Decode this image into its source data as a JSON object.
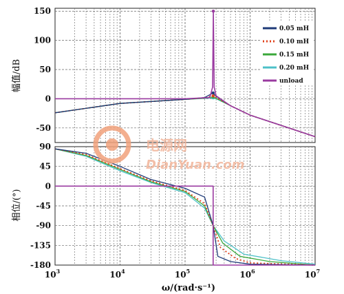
{
  "chart_data": [
    {
      "type": "line",
      "panel": "magnitude",
      "ylabel": "幅值/dB",
      "x_scale": "log",
      "xlim": [
        1000,
        10000000
      ],
      "ylim": [
        -75,
        155
      ],
      "y_ticks": [
        "150",
        "100",
        "50",
        "0",
        "-50"
      ],
      "x_ticks": [
        "10^3",
        "10^4",
        "10^5",
        "10^6",
        "10^7"
      ],
      "grid": true,
      "legend": {
        "position": "top-right",
        "entries": [
          "0.05 mH",
          "0.10 mH",
          "0.15 mH",
          "0.20 mH",
          "unload"
        ]
      },
      "series": [
        {
          "name": "0.05 mH",
          "x": [
            1000,
            10000,
            100000,
            200000,
            270000,
            300000,
            500000,
            1000000,
            10000000
          ],
          "y": [
            -24,
            -8,
            -1,
            2,
            10,
            4,
            -12,
            -28,
            -65
          ]
        },
        {
          "name": "0.10 mH",
          "x": [
            1000,
            10000,
            100000,
            200000,
            270000,
            300000,
            500000,
            1000000,
            10000000
          ],
          "y": [
            -24,
            -8,
            -1,
            1.5,
            5,
            2,
            -12,
            -28,
            -65
          ]
        },
        {
          "name": "0.15 mH",
          "x": [
            1000,
            10000,
            100000,
            200000,
            270000,
            300000,
            500000,
            1000000,
            10000000
          ],
          "y": [
            -24,
            -8,
            -1,
            1,
            3,
            1,
            -12,
            -28,
            -65
          ]
        },
        {
          "name": "0.20 mH",
          "x": [
            1000,
            10000,
            100000,
            200000,
            270000,
            300000,
            500000,
            1000000,
            10000000
          ],
          "y": [
            -24,
            -8,
            -1,
            0.5,
            1.5,
            0,
            -12,
            -28,
            -65
          ]
        },
        {
          "name": "unload",
          "x": [
            1000,
            100000,
            240000,
            265000,
            272000,
            280000,
            300000,
            500000,
            1000000,
            10000000
          ],
          "y": [
            0,
            0,
            2,
            20,
            150,
            20,
            5,
            -12,
            -28,
            -65
          ]
        }
      ]
    },
    {
      "type": "line",
      "panel": "phase",
      "ylabel": "相位/(°)",
      "xlabel": "ω/(rad·s⁻¹)",
      "x_scale": "log",
      "xlim": [
        1000,
        10000000
      ],
      "ylim": [
        -180,
        90
      ],
      "y_ticks": [
        "90",
        "45",
        "0",
        "-45",
        "-90",
        "-135",
        "-180"
      ],
      "x_ticks": [
        "10^3",
        "10^4",
        "10^5",
        "10^6",
        "10^7"
      ],
      "grid": true,
      "series": [
        {
          "name": "0.05 mH",
          "x": [
            1000,
            3000,
            10000,
            30000,
            100000,
            200000,
            270000,
            320000,
            500000,
            1000000,
            10000000
          ],
          "y": [
            85,
            75,
            45,
            15,
            -5,
            -25,
            -90,
            -160,
            -172,
            -178,
            -180
          ]
        },
        {
          "name": "0.10 mH",
          "x": [
            1000,
            3000,
            10000,
            30000,
            100000,
            200000,
            270000,
            350000,
            600000,
            1000000,
            10000000
          ],
          "y": [
            85,
            72,
            40,
            12,
            -10,
            -40,
            -90,
            -140,
            -165,
            -175,
            -180
          ]
        },
        {
          "name": "0.15 mH",
          "x": [
            1000,
            3000,
            10000,
            30000,
            100000,
            200000,
            270000,
            380000,
            700000,
            2000000,
            10000000
          ],
          "y": [
            85,
            70,
            38,
            10,
            -12,
            -45,
            -90,
            -130,
            -160,
            -172,
            -180
          ]
        },
        {
          "name": "0.20 mH",
          "x": [
            1000,
            3000,
            10000,
            30000,
            100000,
            200000,
            270000,
            400000,
            800000,
            3000000,
            10000000
          ],
          "y": [
            85,
            68,
            35,
            8,
            -15,
            -50,
            -90,
            -125,
            -155,
            -170,
            -178
          ]
        },
        {
          "name": "unload",
          "x": [
            1000,
            270000,
            270000,
            10000000
          ],
          "y": [
            0,
            0,
            -180,
            -180
          ]
        }
      ]
    }
  ],
  "colors": {
    "0.05 mH": "#1e3a78",
    "0.10 mH": "#e0401a",
    "0.15 mH": "#3aa83a",
    "0.20 mH": "#4cc0c8",
    "unload": "#9a3aa0"
  },
  "watermark": {
    "brand_cn": "电源网",
    "brand_en": "DianYuan.com"
  }
}
